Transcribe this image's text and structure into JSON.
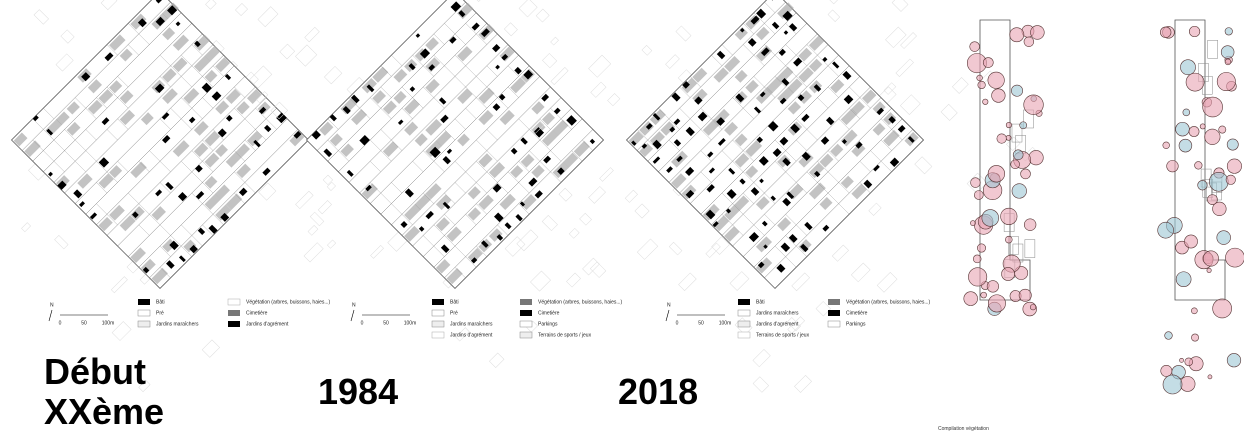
{
  "panels": [
    {
      "label": "Début XXème",
      "scale": {
        "north": "N",
        "ticks": [
          "0",
          "50",
          "100m"
        ]
      },
      "legend": [
        "Bâti",
        "Pré",
        "Jardins maraîchers",
        "Végétation (arbres, buissons, haies...)",
        "Cimetière",
        "Jardins d'agrément"
      ]
    },
    {
      "label": "1984",
      "scale": {
        "north": "N",
        "ticks": [
          "0",
          "50",
          "100m"
        ]
      },
      "legend": [
        "Bâti",
        "Pré",
        "Jardins maraîchers",
        "Jardins d'agrément",
        "Végétation (arbres, buissons, haies...)",
        "Cimetière",
        "Parkings",
        "Terrains de sports / jeux"
      ]
    },
    {
      "label": "2018",
      "scale": {
        "north": "N",
        "ticks": [
          "0",
          "50",
          "100m"
        ]
      },
      "legend": [
        "Bâti",
        "Jardins maraîchers",
        "Jardins d'agrément",
        "Terrains de sports / jeux",
        "Végétation (arbres, buissons, haies...)",
        "Cimetière",
        "Parkings"
      ]
    }
  ],
  "compilation": {
    "caption": "Compilation végétation"
  }
}
